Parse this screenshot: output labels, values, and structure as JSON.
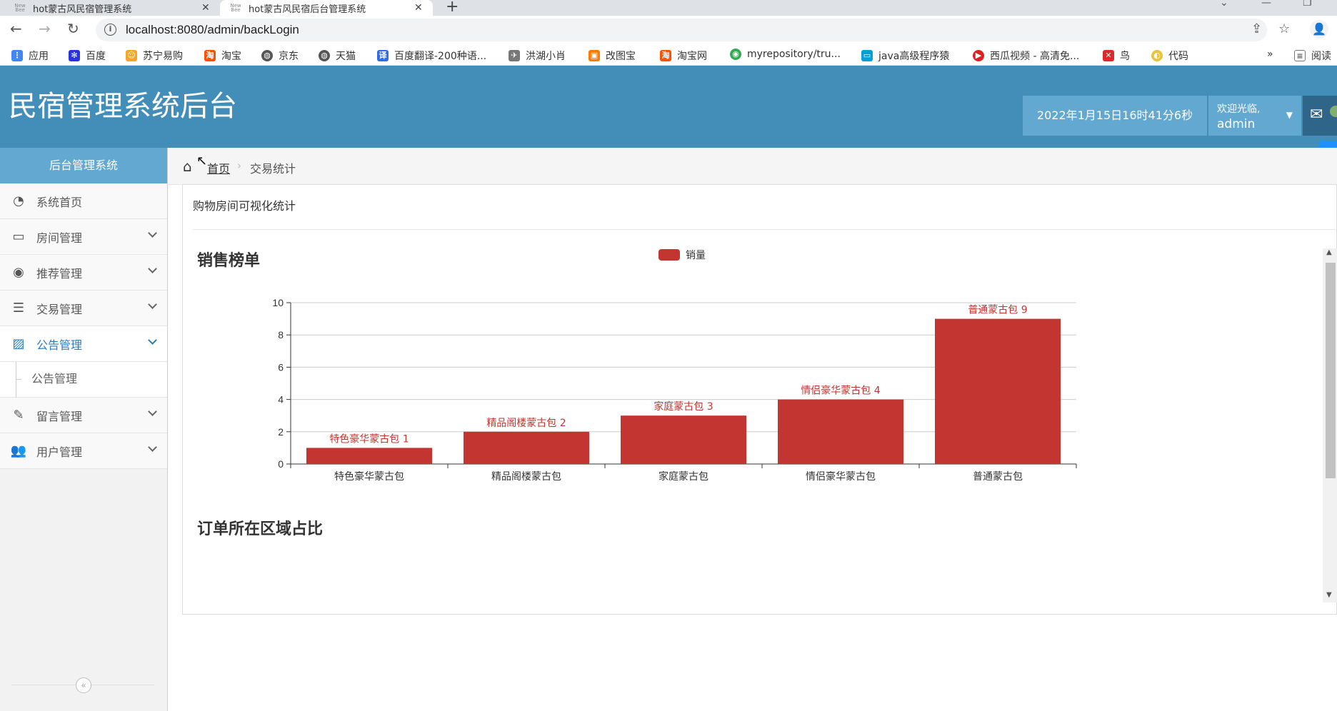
{
  "browser": {
    "tabs": [
      {
        "title": "hot蒙古风民宿管理系统",
        "active": false
      },
      {
        "title": "hot蒙古风民宿后台管理系统",
        "active": true
      }
    ],
    "url": "localhost:8080/admin/backLogin",
    "bookmarks": [
      {
        "label": "应用",
        "icon": "apps-grid-icon",
        "color": "#4285f4"
      },
      {
        "label": "百度",
        "icon": "baidu-paw-icon",
        "color": "#2932e1"
      },
      {
        "label": "苏宁易购",
        "icon": "suning-icon",
        "color": "#f5a623"
      },
      {
        "label": "淘宝",
        "icon": "taobao-icon",
        "color": "#ff5000"
      },
      {
        "label": "京东",
        "icon": "globe-icon",
        "color": "#555555"
      },
      {
        "label": "天猫",
        "icon": "globe-icon",
        "color": "#555555"
      },
      {
        "label": "百度翻译-200种语...",
        "icon": "translate-icon",
        "color": "#2f6ce5"
      },
      {
        "label": "洪湖小肖",
        "icon": "bird-icon",
        "color": "#777777"
      },
      {
        "label": "改图宝",
        "icon": "image-tool-icon",
        "color": "#ff7a00"
      },
      {
        "label": "淘宝网",
        "icon": "taobao-icon",
        "color": "#ff5000"
      },
      {
        "label": "myrepository/tru...",
        "icon": "chrome-icon",
        "color": "#34a853"
      },
      {
        "label": "java高级程序猿",
        "icon": "bilibili-icon",
        "color": "#00a1d6"
      },
      {
        "label": "西瓜视频 - 高清免...",
        "icon": "xigua-icon",
        "color": "#e02020"
      },
      {
        "label": "鸟",
        "icon": "bird-red-icon",
        "color": "#d92b2b"
      },
      {
        "label": "代码",
        "icon": "code-icon",
        "color": "#e8c43a"
      }
    ],
    "reading_list": "阅读"
  },
  "header": {
    "app_title": "民宿管理系统后台",
    "datetime": "2022年1月15日16时41分6秒",
    "welcome": "欢迎光临,",
    "username": "admin"
  },
  "sidebar": {
    "heading": "后台管理系统",
    "items": [
      {
        "label": "系统首页",
        "icon": "dashboard-icon",
        "expandable": false
      },
      {
        "label": "房间管理",
        "icon": "desktop-icon",
        "expandable": true
      },
      {
        "label": "推荐管理",
        "icon": "eye-icon",
        "expandable": true
      },
      {
        "label": "交易管理",
        "icon": "list-icon",
        "expandable": true
      },
      {
        "label": "公告管理",
        "icon": "picture-icon",
        "expandable": true,
        "active": true
      },
      {
        "label": "留言管理",
        "icon": "edit-icon",
        "expandable": true
      },
      {
        "label": "用户管理",
        "icon": "users-icon",
        "expandable": true
      }
    ],
    "submenu": [
      "公告管理"
    ]
  },
  "breadcrumb": {
    "home": "首页",
    "current": "交易统计"
  },
  "panel": {
    "title": "购物房间可视化统计",
    "chart1_title": "销售榜单",
    "chart2_title": "订单所在区域占比"
  },
  "chart_data": {
    "type": "bar",
    "title": "销售榜单",
    "legend": [
      "销量"
    ],
    "categories": [
      "特色豪华蒙古包",
      "精品阁楼蒙古包",
      "家庭蒙古包",
      "情侣豪华蒙古包",
      "普通蒙古包"
    ],
    "series": [
      {
        "name": "销量",
        "values": [
          1,
          2,
          3,
          4,
          9
        ],
        "color": "#c23531"
      }
    ],
    "data_labels": [
      "特色豪华蒙古包 1",
      "精品阁楼蒙古包 2",
      "家庭蒙古包 3",
      "情侣豪华蒙古包 4",
      "普通蒙古包 9"
    ],
    "ylim": [
      0,
      10
    ],
    "yticks": [
      0,
      2,
      4,
      6,
      8,
      10
    ],
    "grid": true,
    "legend_position": "top-center"
  }
}
